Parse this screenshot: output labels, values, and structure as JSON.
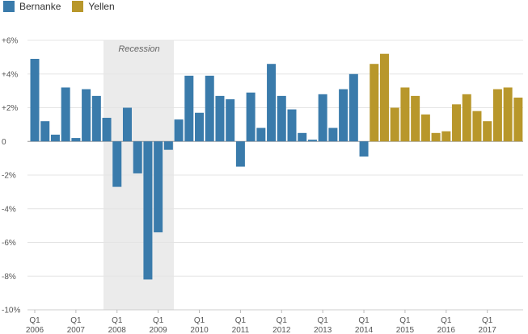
{
  "legend": {
    "items": [
      {
        "label": "Bernanke",
        "color": "#3a7bab"
      },
      {
        "label": "Yellen",
        "color": "#b8972b"
      }
    ]
  },
  "chart_data": {
    "type": "bar",
    "ylim": [
      -10,
      6
    ],
    "yticks": [
      6,
      4,
      2,
      0,
      -2,
      -4,
      -6,
      -8,
      -10
    ],
    "ytick_labels": [
      "+6%",
      "+4%",
      "+2%",
      "0",
      "-2%",
      "-4%",
      "-6%",
      "-8%",
      "-10%"
    ],
    "grid": true,
    "legend_position": "top-left",
    "shaded_region": {
      "label": "Recession",
      "start_index": 11,
      "end_index": 17
    },
    "x_labels": [
      {
        "index": 0,
        "line1": "Q1",
        "line2": "2006"
      },
      {
        "index": 4,
        "line1": "Q1",
        "line2": "2007"
      },
      {
        "index": 8,
        "line1": "Q1",
        "line2": "2008"
      },
      {
        "index": 12,
        "line1": "Q1",
        "line2": "2009"
      },
      {
        "index": 16,
        "line1": "Q1",
        "line2": "2010"
      },
      {
        "index": 20,
        "line1": "Q1",
        "line2": "2011"
      },
      {
        "index": 24,
        "line1": "Q1",
        "line2": "2012"
      },
      {
        "index": 28,
        "line1": "Q1",
        "line2": "2013"
      },
      {
        "index": 32,
        "line1": "Q1",
        "line2": "2014"
      },
      {
        "index": 36,
        "line1": "Q1",
        "line2": "2015"
      },
      {
        "index": 40,
        "line1": "Q1",
        "line2": "2016"
      },
      {
        "index": 44,
        "line1": "Q1",
        "line2": "2017"
      }
    ],
    "series": [
      {
        "name": "Bernanke",
        "color": "#3a7bab",
        "start_index": 0,
        "values": [
          4.9,
          1.2,
          0.4,
          3.2,
          0.2,
          3.1,
          2.7,
          1.4,
          -2.7,
          2.0,
          -1.9,
          -8.2,
          -5.4,
          -0.5,
          1.3,
          3.9,
          1.7,
          3.9,
          2.7,
          2.5,
          -1.5,
          2.9,
          0.8,
          4.6,
          2.7,
          1.9,
          0.5,
          0.1,
          2.8,
          0.8,
          3.1,
          4.0,
          -0.9
        ]
      },
      {
        "name": "Yellen",
        "color": "#b8972b",
        "start_index": 33,
        "values": [
          4.6,
          5.2,
          2.0,
          3.2,
          2.7,
          1.6,
          0.5,
          0.6,
          2.2,
          2.8,
          1.8,
          1.2,
          3.1,
          3.2,
          2.6
        ]
      }
    ]
  }
}
